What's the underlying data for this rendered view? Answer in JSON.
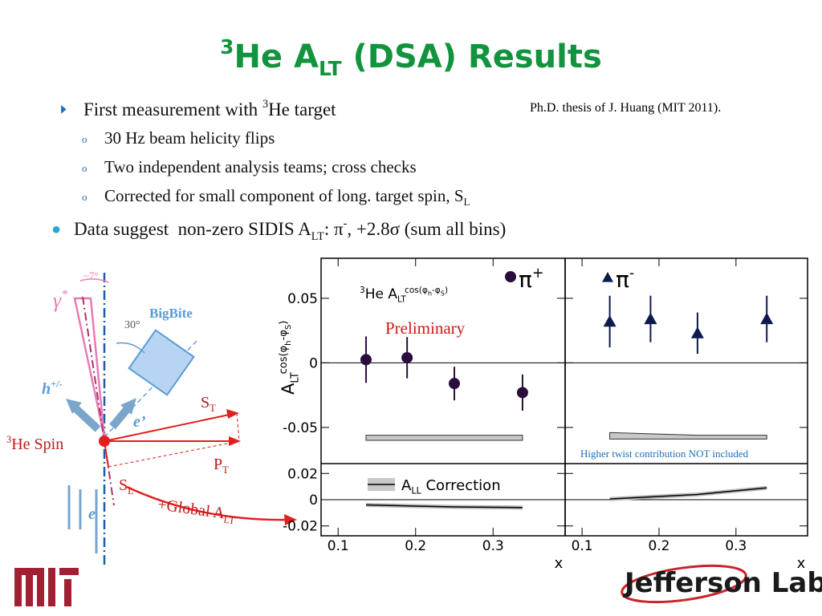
{
  "title": [
    {
      "text": "3",
      "script": "sup"
    },
    {
      "text": "He A"
    },
    {
      "text": "LT",
      "script": "sub"
    },
    {
      "text": " (DSA) Results"
    }
  ],
  "citation": "Ph.D. thesis of J. Huang (MIT 2011).",
  "bullets": [
    {
      "segments": [
        {
          "text": "First measurement with "
        },
        {
          "text": "3",
          "script": "sup"
        },
        {
          "text": "He target"
        }
      ],
      "items": [
        [
          {
            "text": "30 Hz beam helicity flips"
          }
        ],
        [
          {
            "text": "Two independent analysis teams; cross checks"
          }
        ],
        [
          {
            "text": "Corrected for small component of long. target spin, S"
          },
          {
            "text": "L",
            "script": "sub"
          }
        ]
      ]
    },
    {
      "segments": [
        {
          "text": "Data suggest  non-zero SIDIS A"
        },
        {
          "text": "LT",
          "script": "sub"
        },
        {
          "text": ": π"
        },
        {
          "text": "-",
          "script": "sup"
        },
        {
          "text": ", +2.8σ (sum all bins)"
        }
      ],
      "items": []
    }
  ],
  "diagram": {
    "angle_top": "~7°",
    "photon": [
      {
        "text": "γ"
      },
      {
        "text": "*",
        "script": "sup"
      }
    ],
    "angle": "30°",
    "spectrometer": "BigBite",
    "hadron": [
      {
        "text": "h"
      },
      {
        "text": "+/-",
        "script": "sup"
      }
    ],
    "scattered": "e’",
    "spin": [
      {
        "text": "3",
        "script": "sup"
      },
      {
        "text": "He Spin"
      }
    ],
    "st": [
      {
        "text": "S"
      },
      {
        "text": "T",
        "script": "sub"
      }
    ],
    "pt": [
      {
        "text": "P"
      },
      {
        "text": "T",
        "script": "sub"
      }
    ],
    "sl": [
      {
        "text": "S"
      },
      {
        "text": "L",
        "script": "sub"
      }
    ],
    "global": [
      {
        "text": "+Global A"
      },
      {
        "text": "LT",
        "script": "sub"
      }
    ],
    "beam": "e"
  },
  "chart_data": [
    {
      "type": "scatter",
      "name": [
        {
          "text": "π"
        },
        {
          "text": "+",
          "script": "sup"
        }
      ],
      "marker": "circle",
      "color": "#2b0d3d",
      "panel_label": [
        {
          "text": "3",
          "script": "sup"
        },
        {
          "text": "He A"
        },
        {
          "text": "LT",
          "script": "sub"
        },
        {
          "text": "cos(φ",
          "script": "sup"
        },
        {
          "text": "h",
          "script": "supsub"
        },
        {
          "text": "-φ",
          "script": "sup"
        },
        {
          "text": "S",
          "script": "supsub"
        },
        {
          "text": ")",
          "script": "sup"
        }
      ],
      "annotation": "Preliminary",
      "ylabel": [
        {
          "text": "A"
        },
        {
          "text": "LT",
          "script": "sub"
        },
        {
          "text": "cos(φ",
          "script": "sup"
        },
        {
          "text": "h",
          "script": "supsub"
        },
        {
          "text": "-φ",
          "script": "sup"
        },
        {
          "text": "S",
          "script": "supsub"
        },
        {
          "text": ")",
          "script": "sup"
        }
      ],
      "xlabel": "x",
      "x": [
        0.136,
        0.189,
        0.25,
        0.338
      ],
      "values": [
        0.0025,
        0.004,
        -0.016,
        -0.023
      ],
      "errors": [
        0.018,
        0.016,
        0.013,
        0.014
      ],
      "band": {
        "x": [
          0.136,
          0.338
        ],
        "upper": [
          -0.056,
          -0.056
        ],
        "lower": [
          -0.06,
          -0.06
        ]
      },
      "correction": {
        "legend": [
          {
            "text": "A"
          },
          {
            "text": "LL",
            "script": "sub"
          },
          {
            "text": " Correction"
          }
        ],
        "x": [
          0.136,
          0.25,
          0.338
        ],
        "values": [
          -0.004,
          -0.0055,
          -0.006
        ]
      },
      "xlim": [
        0.078,
        0.393
      ],
      "xticks": [
        0.1,
        0.2,
        0.3
      ],
      "ylim": [
        -0.078,
        0.081
      ],
      "yticks": [
        0.05,
        0,
        -0.05
      ],
      "ylim2": [
        -0.0275,
        0.0275
      ],
      "yticks2": [
        0.02,
        0,
        -0.02
      ],
      "ytick_labels": true
    },
    {
      "type": "scatter",
      "name": [
        {
          "text": "π"
        },
        {
          "text": "-",
          "script": "sup"
        }
      ],
      "marker": "triangle",
      "color": "#0d1a4d",
      "annotation": "Higher twist contribution NOT included",
      "xlabel": "x",
      "x": [
        0.136,
        0.189,
        0.25,
        0.34
      ],
      "values": [
        0.032,
        0.034,
        0.023,
        0.034
      ],
      "errors": [
        0.02,
        0.018,
        0.016,
        0.018
      ],
      "band": {
        "x": [
          0.136,
          0.25,
          0.34
        ],
        "upper": [
          -0.054,
          -0.056,
          -0.056
        ],
        "lower": [
          -0.059,
          -0.059,
          -0.059
        ]
      },
      "correction": {
        "x": [
          0.136,
          0.25,
          0.34
        ],
        "values": [
          0.0005,
          0.004,
          0.009
        ]
      },
      "xlim": [
        0.078,
        0.393
      ],
      "xticks": [
        0.1,
        0.2,
        0.3
      ],
      "ylim": [
        -0.078,
        0.081
      ],
      "yticks": [
        0.05,
        0,
        -0.05
      ],
      "ylim2": [
        -0.0275,
        0.0275
      ],
      "yticks2": [
        0.02,
        0,
        -0.02
      ],
      "ytick_labels": false
    }
  ],
  "logo": "Jefferson Lab"
}
